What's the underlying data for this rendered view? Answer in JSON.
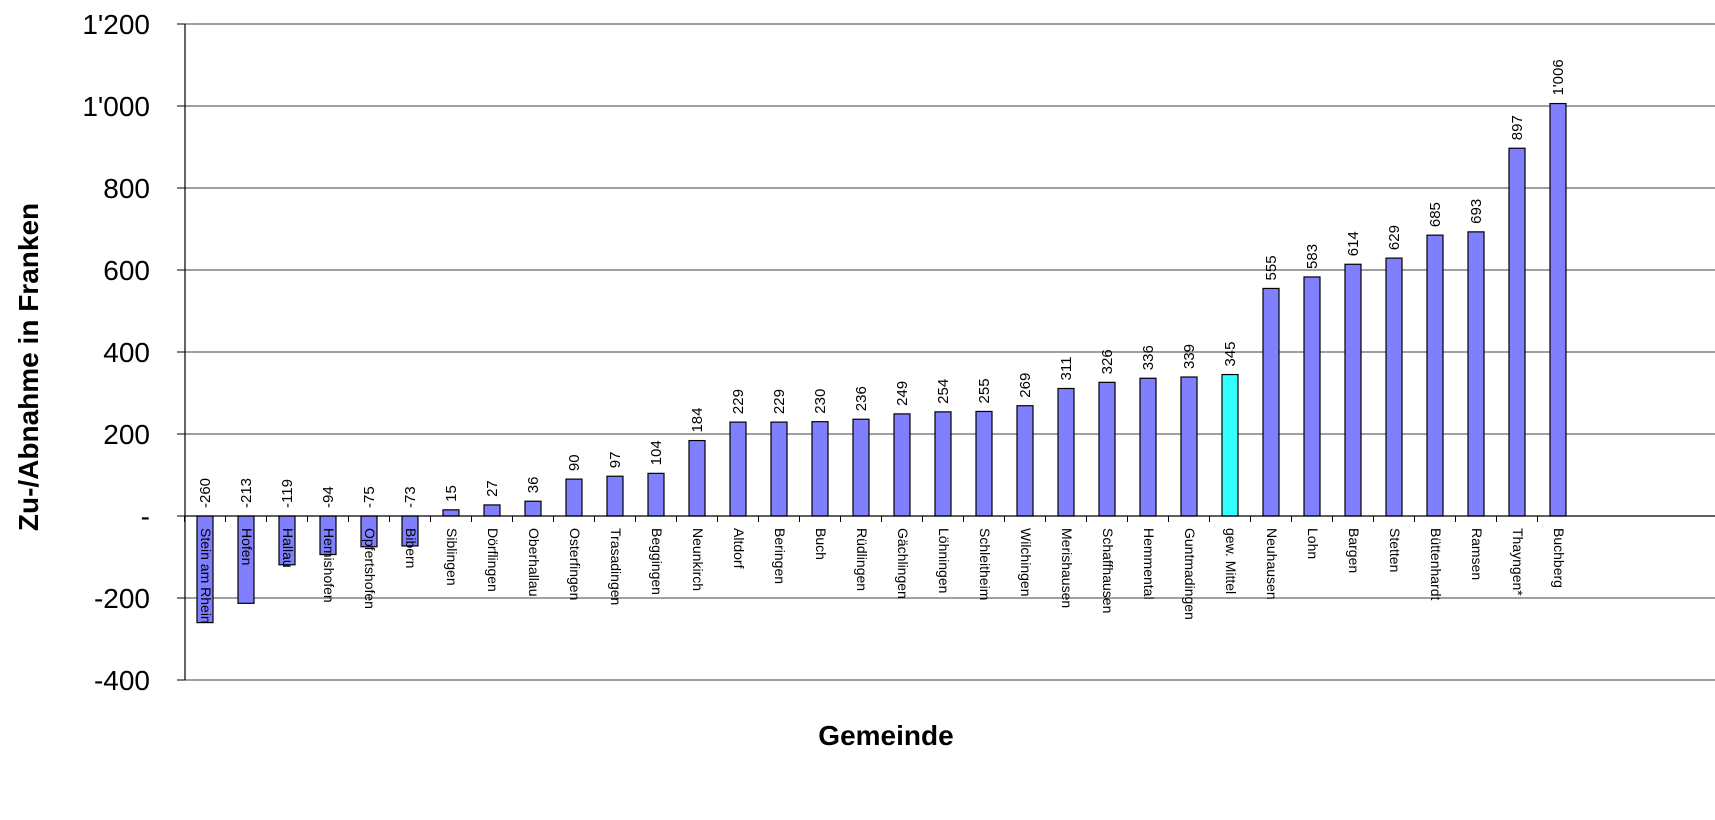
{
  "chart_data": {
    "type": "bar",
    "title": "",
    "xlabel": "Gemeinde",
    "ylabel": "Zu-/Abnahme in Franken",
    "ylim": [
      -400,
      1200
    ],
    "yticks": [
      -400,
      -200,
      0,
      200,
      400,
      600,
      800,
      1000,
      1200
    ],
    "ytick_labels": [
      "-400",
      "-200",
      "-",
      "200",
      "400",
      "600",
      "800",
      "1'000",
      "1'200"
    ],
    "grid": true,
    "legend": "none",
    "colors": {
      "bar": "#8080ff",
      "highlight": "#33ffff",
      "outline": "#000000"
    },
    "categories": [
      "Stein am Rhein",
      "Hofen",
      "Hallau",
      "Hemishofen",
      "Opfertshofen",
      "Bibern",
      "Siblingen",
      "Dörflingen",
      "Oberhallau",
      "Osterfingen",
      "Trasadingen",
      "Beggingen",
      "Neunkirch",
      "Altdorf",
      "Beringen",
      "Buch",
      "Rüdlingen",
      "Gächlingen",
      "Löhningen",
      "Schleitheim",
      "Wilchingen",
      "Merishausen",
      "Schaffhausen",
      "Hemmental",
      "Guntmadingen",
      "gew. Mittel",
      "Neuhausen",
      "Lohn",
      "Bargen",
      "Stetten",
      "Büttenhardt",
      "Ramsen",
      "Thayngen*",
      "Buchberg"
    ],
    "values": [
      -260,
      -213,
      -119,
      -94,
      -75,
      -73,
      15,
      27,
      36,
      90,
      97,
      104,
      184,
      229,
      229,
      230,
      236,
      249,
      254,
      255,
      269,
      311,
      326,
      336,
      339,
      345,
      555,
      583,
      614,
      629,
      685,
      693,
      897,
      1006
    ],
    "value_labels": [
      "-260",
      "-213",
      "-119",
      "-94",
      "-75",
      "-73",
      "15",
      "27",
      "36",
      "90",
      "97",
      "104",
      "184",
      "229",
      "229",
      "230",
      "236",
      "249",
      "254",
      "255",
      "269",
      "311",
      "326",
      "336",
      "339",
      "345",
      "555",
      "583",
      "614",
      "629",
      "685",
      "693",
      "897",
      "1'006"
    ],
    "highlight_category": "gew. Mittel"
  }
}
